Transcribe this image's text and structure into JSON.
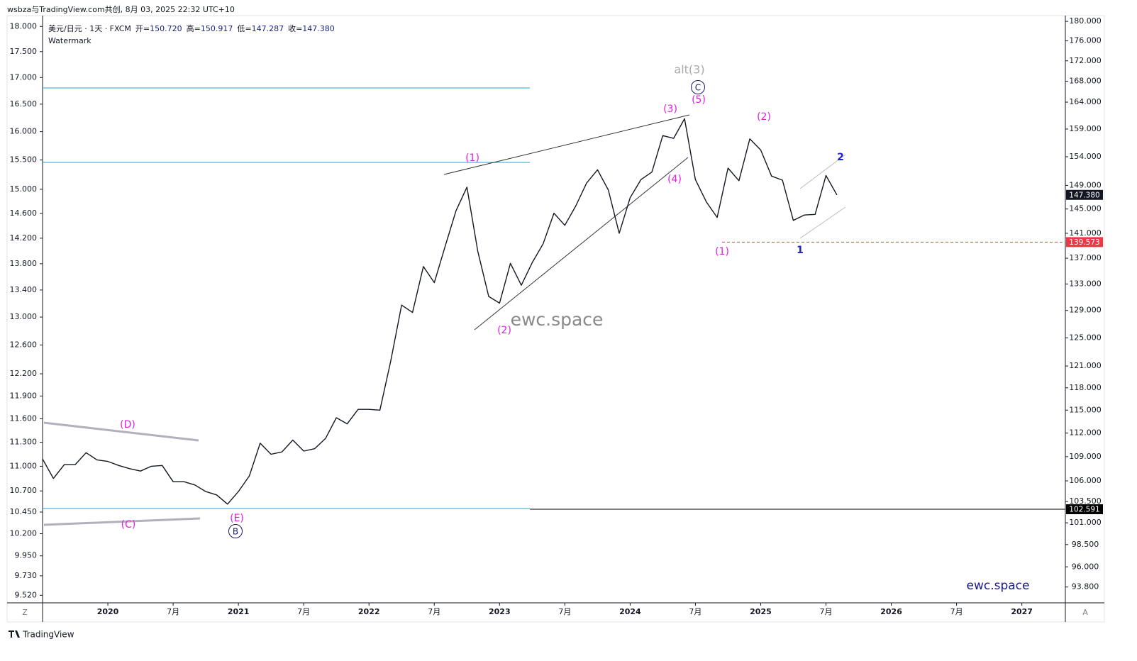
{
  "header": "wsbza与TradingView.com共创, 8月 03, 2025 22:32 UTC+10",
  "footer": "TradingView",
  "chart_data": {
    "type": "line",
    "log_scale": true,
    "grid": false,
    "subtitle": "Watermark",
    "watermark": "ewc.space",
    "brand": "ewc.space",
    "scale_buttons": [
      "Z",
      "A"
    ],
    "legend_ohlc": {
      "labels": [
        "开=",
        "高=",
        "低=",
        "收="
      ],
      "values": [
        150.72,
        150.917,
        147.287,
        147.38
      ],
      "value_labels": [
        "150.720",
        "150.917",
        "147.287",
        "147.380"
      ]
    },
    "x": [
      "2019-07",
      "2019-08",
      "2019-09",
      "2019-10",
      "2019-11",
      "2019-12",
      "2020-01",
      "2020-02",
      "2020-03",
      "2020-04",
      "2020-05",
      "2020-06",
      "2020-07",
      "2020-08",
      "2020-09",
      "2020-10",
      "2020-11",
      "2020-12",
      "2021-01",
      "2021-02",
      "2021-03",
      "2021-04",
      "2021-05",
      "2021-06",
      "2021-07",
      "2021-08",
      "2021-09",
      "2021-10",
      "2021-11",
      "2021-12",
      "2022-01",
      "2022-02",
      "2022-03",
      "2022-04",
      "2022-05",
      "2022-06",
      "2022-07",
      "2022-08",
      "2022-09",
      "2022-10",
      "2022-11",
      "2022-12",
      "2023-01",
      "2023-02",
      "2023-03",
      "2023-04",
      "2023-05",
      "2023-06",
      "2023-07",
      "2023-08",
      "2023-09",
      "2023-10",
      "2023-11",
      "2023-12",
      "2024-01",
      "2024-02",
      "2024-03",
      "2024-04",
      "2024-05",
      "2024-06",
      "2024-07",
      "2024-08",
      "2024-09",
      "2024-10",
      "2024-11",
      "2024-12",
      "2025-01",
      "2025-02",
      "2025-03",
      "2025-04",
      "2025-05",
      "2025-06",
      "2025-07",
      "2025-08"
    ],
    "series": [
      {
        "name": "美元/日元 · 1天 · FXCM",
        "color": "#131722",
        "values": [
          108.7,
          106.3,
          108.0,
          108.0,
          109.5,
          108.6,
          108.4,
          107.9,
          107.5,
          107.2,
          107.8,
          107.9,
          105.9,
          105.9,
          105.5,
          104.7,
          104.3,
          103.2,
          104.7,
          106.6,
          110.7,
          109.3,
          109.6,
          111.1,
          109.7,
          110.0,
          111.3,
          114.0,
          113.2,
          115.1,
          115.1,
          115.0,
          121.7,
          129.8,
          128.7,
          135.7,
          133.2,
          138.9,
          144.7,
          148.7,
          138.1,
          131.1,
          130.1,
          136.2,
          132.8,
          136.3,
          139.3,
          144.3,
          142.3,
          145.5,
          149.4,
          151.7,
          148.2,
          141.0,
          146.9,
          150.0,
          151.3,
          157.8,
          157.3,
          160.9,
          150.0,
          146.2,
          143.6,
          152.0,
          149.8,
          157.2,
          155.2,
          150.6,
          149.9,
          143.1,
          144.0,
          144.1,
          150.7,
          147.38
        ]
      }
    ],
    "xlim": [
      "2019-07",
      "2027-05"
    ],
    "xticks": [
      {
        "value": "2020-01",
        "label": "2020"
      },
      {
        "value": "2020-07",
        "label": "7月"
      },
      {
        "value": "2021-01",
        "label": "2021"
      },
      {
        "value": "2021-07",
        "label": "7月"
      },
      {
        "value": "2022-01",
        "label": "2022"
      },
      {
        "value": "2022-07",
        "label": "7月"
      },
      {
        "value": "2023-01",
        "label": "2023"
      },
      {
        "value": "2023-07",
        "label": "7月"
      },
      {
        "value": "2024-01",
        "label": "2024"
      },
      {
        "value": "2024-07",
        "label": "7月"
      },
      {
        "value": "2025-01",
        "label": "2025"
      },
      {
        "value": "2025-07",
        "label": "7月"
      },
      {
        "value": "2026-01",
        "label": "2026"
      },
      {
        "value": "2026-07",
        "label": "7月"
      },
      {
        "value": "2027-01",
        "label": "2027"
      }
    ],
    "ylim": [
      92.1,
      181.2
    ],
    "yticks": [
      {
        "value": 180,
        "label": "180.000"
      },
      {
        "value": 176,
        "label": "176.000"
      },
      {
        "value": 172,
        "label": "172.000"
      },
      {
        "value": 168,
        "label": "168.000"
      },
      {
        "value": 164,
        "label": "164.000"
      },
      {
        "value": 159,
        "label": "159.000"
      },
      {
        "value": 154,
        "label": "154.000"
      },
      {
        "value": 149,
        "label": "149.000"
      },
      {
        "value": 145,
        "label": "145.000"
      },
      {
        "value": 141,
        "label": "141.000"
      },
      {
        "value": 137,
        "label": "137.000"
      },
      {
        "value": 133,
        "label": "133.000"
      },
      {
        "value": 129,
        "label": "129.000"
      },
      {
        "value": 125,
        "label": "125.000"
      },
      {
        "value": 121,
        "label": "121.000"
      },
      {
        "value": 118,
        "label": "118.000"
      },
      {
        "value": 115,
        "label": "115.000"
      },
      {
        "value": 112,
        "label": "112.000"
      },
      {
        "value": 109,
        "label": "109.000"
      },
      {
        "value": 106,
        "label": "106.000"
      },
      {
        "value": 103.5,
        "label": "103.500"
      },
      {
        "value": 101,
        "label": "101.000"
      },
      {
        "value": 98.5,
        "label": "98.500"
      },
      {
        "value": 96,
        "label": "96.000"
      },
      {
        "value": 93.8,
        "label": "93.800"
      }
    ],
    "y2lim": [
      9.44,
      18.22
    ],
    "y2ticks": [
      {
        "value": 18,
        "label": "18.000"
      },
      {
        "value": 17.5,
        "label": "17.500"
      },
      {
        "value": 17,
        "label": "17.000"
      },
      {
        "value": 16.5,
        "label": "16.500"
      },
      {
        "value": 16,
        "label": "16.000"
      },
      {
        "value": 15.5,
        "label": "15.500"
      },
      {
        "value": 15,
        "label": "15.000"
      },
      {
        "value": 14.6,
        "label": "14.600"
      },
      {
        "value": 14.2,
        "label": "14.200"
      },
      {
        "value": 13.8,
        "label": "13.800"
      },
      {
        "value": 13.4,
        "label": "13.400"
      },
      {
        "value": 13,
        "label": "13.000"
      },
      {
        "value": 12.6,
        "label": "12.600"
      },
      {
        "value": 12.2,
        "label": "12.200"
      },
      {
        "value": 11.9,
        "label": "11.900"
      },
      {
        "value": 11.6,
        "label": "11.600"
      },
      {
        "value": 11.3,
        "label": "11.300"
      },
      {
        "value": 11,
        "label": "11.000"
      },
      {
        "value": 10.7,
        "label": "10.700"
      },
      {
        "value": 10.45,
        "label": "10.450"
      },
      {
        "value": 10.2,
        "label": "10.200"
      },
      {
        "value": 9.95,
        "label": "9.950"
      },
      {
        "value": 9.73,
        "label": "9.730"
      },
      {
        "value": 9.52,
        "label": "9.520"
      }
    ],
    "price_labels": [
      {
        "value": 147.38,
        "label": "147.380",
        "color": "#131722"
      },
      {
        "value": 139.573,
        "label": "139.573",
        "color": "#f23645"
      },
      {
        "value": 102.591,
        "label": "102.591",
        "color": "#000000"
      }
    ],
    "annotations": [
      "(D)",
      "(C)",
      "(E)",
      "B",
      "(1)",
      "(2)",
      "(3)",
      "(4)",
      "(5)",
      "C",
      "alt(3)",
      "(1)",
      "(2)",
      "1",
      "2"
    ]
  }
}
